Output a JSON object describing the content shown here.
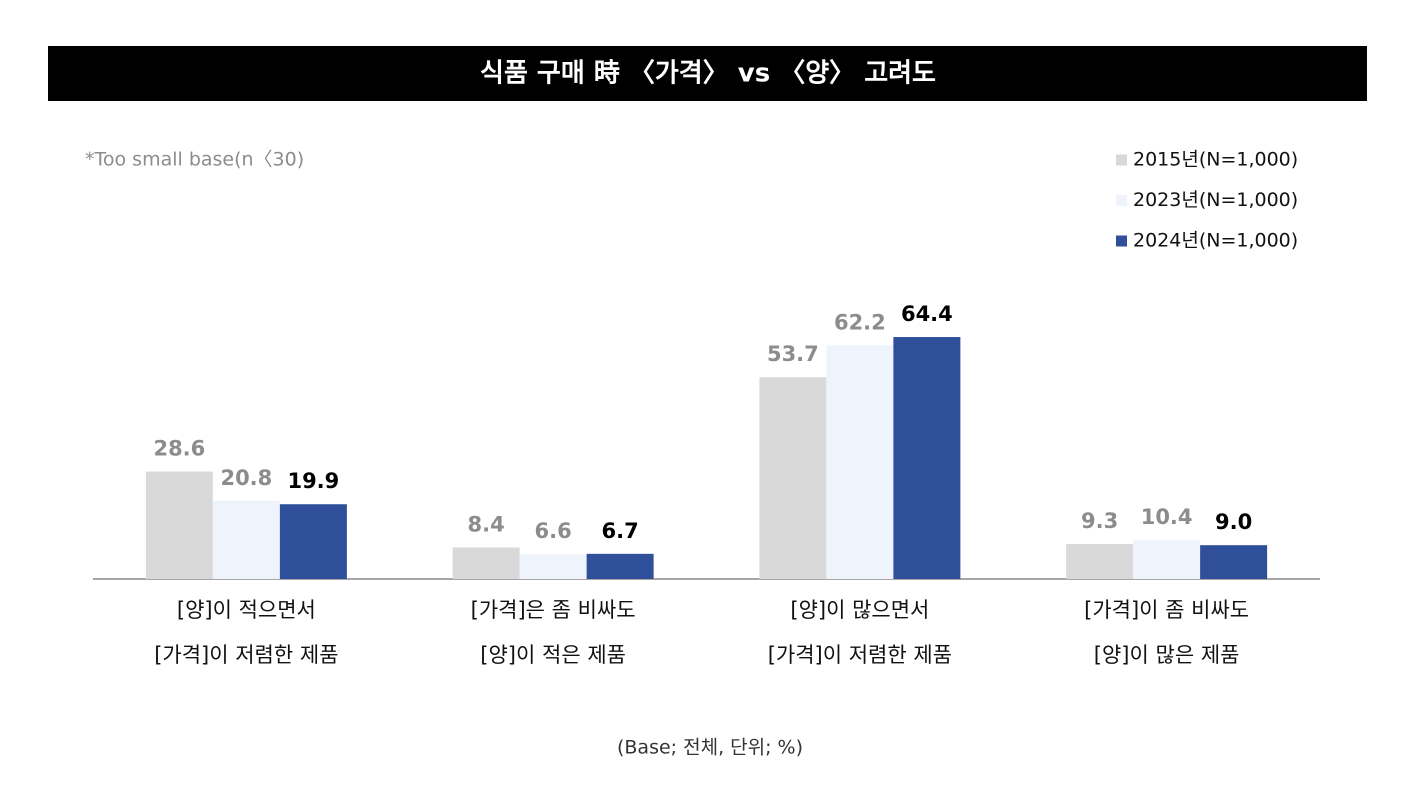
{
  "chart_data": {
    "type": "bar",
    "title": "식품 구매 時 〈가격〉 vs 〈양〉 고려도",
    "note": "*Too small base(n〈30)",
    "footnote": "(Base; 전체, 단위; %)",
    "categories": [
      "[양]이 적으면서\n[가격]이 저렴한 제품",
      "[가격]은 좀 비싸도\n[양]이 적은 제품",
      "[양]이 많으면서\n[가격]이 저렴한 제품",
      "[가격]이 좀 비싸도\n[양]이 많은 제품"
    ],
    "series": [
      {
        "name": "2015년(N=1,000)",
        "color": "#d9d9d9",
        "label_color": "#8c8c8c",
        "values": [
          28.6,
          8.4,
          53.7,
          9.3
        ]
      },
      {
        "name": "2023년(N=1,000)",
        "color": "#eef3fc",
        "label_color": "#8c8c8c",
        "values": [
          20.8,
          6.6,
          62.2,
          10.4
        ]
      },
      {
        "name": "2024년(N=1,000)",
        "color": "#2f4f9b",
        "label_color": "#000000",
        "values": [
          19.9,
          6.7,
          64.4,
          9.0
        ],
        "value_labels": [
          "19.9",
          "6.7",
          "64.4",
          "9.0"
        ]
      }
    ],
    "ylim": [
      0,
      70
    ],
    "legend": "top-right"
  }
}
